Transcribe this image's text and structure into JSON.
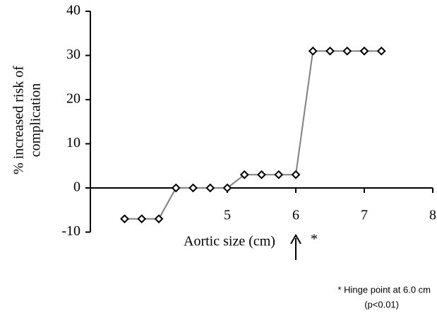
{
  "chart_data": {
    "type": "line",
    "ylabel_lines": [
      "% increased risk of",
      "complication"
    ],
    "xlabel": "Aortic size (cm)",
    "x": [
      3.5,
      3.75,
      4.0,
      4.25,
      4.5,
      4.75,
      5.0,
      5.25,
      5.5,
      5.75,
      6.0,
      6.25,
      6.5,
      6.75,
      7.0,
      7.25
    ],
    "series": [
      {
        "color": "#808080",
        "values": [
          -7,
          -7,
          -7,
          0,
          0,
          0,
          0,
          3,
          3,
          3,
          3,
          31,
          31,
          31,
          31,
          31
        ]
      }
    ],
    "xlim": [
      3,
      8
    ],
    "xticks": [
      5,
      6,
      7,
      8
    ],
    "ylim": [
      -10,
      40
    ],
    "yticks": [
      -10,
      0,
      10,
      20,
      30,
      40
    ],
    "marker_label": "*",
    "footnote_lines": [
      "* Hinge point at  6.0 cm",
      "(p<0.01)"
    ]
  }
}
